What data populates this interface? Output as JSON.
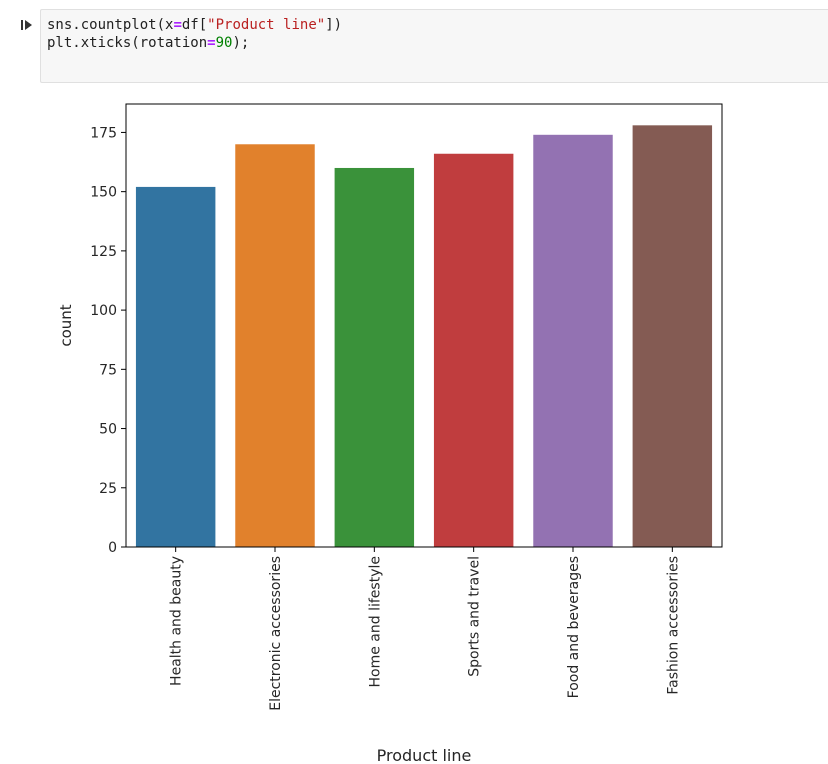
{
  "cell": {
    "code_lines": [
      [
        {
          "t": "sns.countplot(x",
          "c": ""
        },
        {
          "t": "=",
          "c": "tok-op"
        },
        {
          "t": "df[",
          "c": ""
        },
        {
          "t": "\"Product line\"",
          "c": "tok-str"
        },
        {
          "t": "])",
          "c": ""
        }
      ],
      [
        {
          "t": "plt.xticks(rotation",
          "c": ""
        },
        {
          "t": "=",
          "c": "tok-op"
        },
        {
          "t": "90",
          "c": "tok-num"
        },
        {
          "t": ");",
          "c": ""
        }
      ]
    ]
  },
  "chart_data": {
    "type": "bar",
    "xlabel": "Product line",
    "ylabel": "count",
    "ylim": [
      0,
      187
    ],
    "yticks": [
      0,
      25,
      50,
      75,
      100,
      125,
      150,
      175
    ],
    "categories": [
      "Health and beauty",
      "Electronic accessories",
      "Home and lifestyle",
      "Sports and travel",
      "Food and beverages",
      "Fashion accessories"
    ],
    "values": [
      152,
      170,
      160,
      166,
      174,
      178
    ],
    "colors": [
      "#3274a1",
      "#e1812c",
      "#3a923a",
      "#c03d3e",
      "#9372b2",
      "#845b53"
    ],
    "grid": false,
    "legend": false
  }
}
